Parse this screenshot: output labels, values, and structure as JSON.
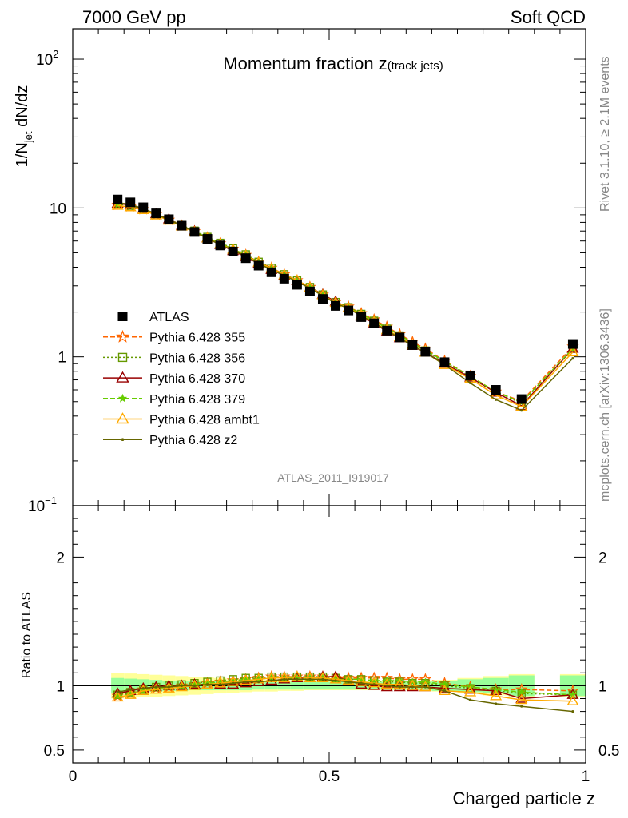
{
  "header": {
    "left": "7000 GeV pp",
    "right": "Soft QCD"
  },
  "side_labels": {
    "rivet": "Rivet 3.1.10, ≥ 2.1M events",
    "mcplots": "mcplots.cern.ch [arXiv:1306.3436]"
  },
  "analysis_id": "ATLAS_2011_I919017",
  "colors": {
    "atlas": "#000000",
    "p355": "#ff6600",
    "p356": "#669900",
    "p370": "#990000",
    "p379": "#66cc00",
    "pambt1": "#ffaa00",
    "pz2": "#666600",
    "band_inner": "#99ff99",
    "band_outer": "#ffff99"
  },
  "chart_data": [
    {
      "type": "line",
      "title": "Momentum fraction z",
      "title_sub": "(track jets)",
      "ylabel": "1/N",
      "ylabel_sub": "jet",
      "ylabel_tail": " dN/dz",
      "yscale": "log",
      "xlim": [
        0,
        1.0
      ],
      "ylim": [
        0.1,
        160
      ],
      "yticks": [
        {
          "v": 100,
          "base": "10",
          "exp": "2"
        },
        {
          "v": 10,
          "base": "10",
          "exp": ""
        },
        {
          "v": 1,
          "base": "1",
          "exp": ""
        },
        {
          "v": 0.1,
          "base": "10",
          "exp": "−1"
        }
      ],
      "x": [
        0.0875,
        0.1125,
        0.1375,
        0.1625,
        0.1875,
        0.2125,
        0.2375,
        0.2625,
        0.2875,
        0.3125,
        0.3375,
        0.3625,
        0.3875,
        0.4125,
        0.4375,
        0.4625,
        0.4875,
        0.5125,
        0.5375,
        0.5625,
        0.5875,
        0.6125,
        0.6375,
        0.6625,
        0.6875,
        0.725,
        0.775,
        0.825,
        0.875,
        0.975
      ],
      "atlas": [
        11.4,
        10.9,
        10.1,
        9.2,
        8.4,
        7.6,
        6.9,
        6.2,
        5.6,
        5.1,
        4.6,
        4.1,
        3.7,
        3.35,
        3.05,
        2.75,
        2.45,
        2.2,
        2.05,
        1.85,
        1.68,
        1.5,
        1.35,
        1.2,
        1.08,
        0.92,
        0.75,
        0.6,
        0.52,
        1.22
      ],
      "ratio_series": [
        {
          "name": "Pythia 6.428 355",
          "key": "p355",
          "marker": "star-open",
          "dash": "6,3",
          "ratio": [
            0.92,
            0.94,
            0.97,
            0.98,
            0.99,
            1.0,
            1.01,
            1.02,
            1.03,
            1.04,
            1.05,
            1.06,
            1.07,
            1.07,
            1.07,
            1.07,
            1.07,
            1.06,
            1.06,
            1.06,
            1.06,
            1.06,
            1.05,
            1.05,
            1.05,
            1.02,
            0.99,
            0.97,
            0.97,
            0.96
          ]
        },
        {
          "name": "Pythia 6.428 356",
          "key": "p356",
          "marker": "square-open",
          "dash": "2,3",
          "ratio": [
            0.93,
            0.95,
            0.97,
            0.99,
            1.0,
            1.01,
            1.02,
            1.03,
            1.04,
            1.05,
            1.06,
            1.06,
            1.07,
            1.07,
            1.07,
            1.07,
            1.07,
            1.06,
            1.05,
            1.05,
            1.04,
            1.03,
            1.03,
            1.02,
            1.02,
            1.0,
            0.98,
            0.96,
            0.94,
            0.93
          ]
        },
        {
          "name": "Pythia 6.428 370",
          "key": "p370",
          "marker": "triangle-open",
          "dash": "",
          "ratio": [
            0.94,
            0.96,
            0.98,
            0.99,
            1.0,
            1.0,
            1.01,
            1.01,
            1.01,
            1.01,
            1.02,
            1.03,
            1.04,
            1.05,
            1.06,
            1.06,
            1.07,
            1.07,
            1.04,
            1.01,
            1.0,
            0.99,
            0.99,
            0.99,
            0.99,
            0.98,
            0.97,
            0.96,
            0.9,
            0.93
          ]
        },
        {
          "name": "Pythia 6.428 379",
          "key": "p379",
          "marker": "star-filled",
          "dash": "6,3",
          "ratio": [
            0.92,
            0.94,
            0.96,
            0.98,
            0.99,
            1.0,
            1.01,
            1.02,
            1.03,
            1.04,
            1.05,
            1.05,
            1.06,
            1.06,
            1.06,
            1.06,
            1.06,
            1.05,
            1.05,
            1.05,
            1.04,
            1.04,
            1.04,
            1.03,
            1.03,
            1.01,
            0.99,
            0.97,
            0.95,
            0.93
          ]
        },
        {
          "name": "Pythia 6.428 ambt1",
          "key": "pambt1",
          "marker": "triangle-open",
          "dash": "",
          "ratio": [
            0.91,
            0.93,
            0.96,
            0.97,
            0.98,
            0.99,
            1.0,
            1.01,
            1.02,
            1.03,
            1.04,
            1.05,
            1.06,
            1.06,
            1.07,
            1.06,
            1.06,
            1.05,
            1.04,
            1.03,
            1.02,
            1.01,
            1.01,
            1.0,
            0.99,
            0.96,
            0.95,
            0.92,
            0.89,
            0.88
          ]
        },
        {
          "name": "Pythia 6.428 z2",
          "key": "pz2",
          "marker": "dot",
          "dash": "",
          "ratio": [
            0.95,
            0.97,
            0.98,
            0.99,
            0.99,
            1.0,
            1.0,
            1.01,
            1.01,
            1.02,
            1.03,
            1.03,
            1.04,
            1.05,
            1.05,
            1.05,
            1.05,
            1.04,
            1.03,
            1.02,
            1.01,
            1.0,
            0.99,
            0.99,
            0.99,
            0.96,
            0.89,
            0.86,
            0.84,
            0.8
          ]
        }
      ]
    },
    {
      "type": "line",
      "ylabel": "Ratio to ATLAS",
      "xlabel": "Charged particle z",
      "ylim": [
        0.4,
        2.4
      ],
      "yticks": [
        {
          "v": 2,
          "label": "2"
        },
        {
          "v": 1,
          "label": "1"
        },
        {
          "v": 0.5,
          "label": "0.5"
        }
      ],
      "xticks": [
        {
          "v": 0,
          "label": "0"
        },
        {
          "v": 0.5,
          "label": "0.5"
        },
        {
          "v": 1,
          "label": "1"
        }
      ],
      "band_x_edges": [
        0.075,
        0.1,
        0.125,
        0.15,
        0.175,
        0.2,
        0.225,
        0.25,
        0.275,
        0.3,
        0.325,
        0.35,
        0.375,
        0.4,
        0.425,
        0.45,
        0.475,
        0.5,
        0.525,
        0.55,
        0.575,
        0.6,
        0.625,
        0.65,
        0.675,
        0.7,
        0.75,
        0.8,
        0.85,
        0.9,
        0.95,
        1.0
      ],
      "band_inner": [
        0.06,
        0.055,
        0.05,
        0.045,
        0.04,
        0.04,
        0.035,
        0.035,
        0.035,
        0.035,
        0.035,
        0.03,
        0.03,
        0.03,
        0.03,
        0.03,
        0.03,
        0.03,
        0.03,
        0.03,
        0.03,
        0.03,
        0.03,
        0.03,
        0.03,
        0.04,
        0.05,
        0.06,
        0.08,
        0.0,
        0.08
      ],
      "band_outer": [
        0.1,
        0.095,
        0.09,
        0.085,
        0.08,
        0.075,
        0.07,
        0.065,
        0.06,
        0.055,
        0.05,
        0.045,
        0.045,
        0.04,
        0.04,
        0.035,
        0.035,
        0.035,
        0.035,
        0.035,
        0.035,
        0.035,
        0.035,
        0.035,
        0.035,
        0.045,
        0.06,
        0.075,
        0.09,
        0.0,
        0.09
      ]
    }
  ],
  "legend": [
    {
      "label": "ATLAS",
      "key": "atlas",
      "marker": "square-filled",
      "dash": "none"
    },
    {
      "label": "Pythia 6.428 355",
      "key": "p355",
      "marker": "star-open",
      "dash": "6,3"
    },
    {
      "label": "Pythia 6.428 356",
      "key": "p356",
      "marker": "square-open",
      "dash": "2,3"
    },
    {
      "label": "Pythia 6.428 370",
      "key": "p370",
      "marker": "triangle-open",
      "dash": ""
    },
    {
      "label": "Pythia 6.428 379",
      "key": "p379",
      "marker": "star-filled",
      "dash": "6,3"
    },
    {
      "label": "Pythia 6.428 ambt1",
      "key": "pambt1",
      "marker": "triangle-open",
      "dash": ""
    },
    {
      "label": "Pythia 6.428 z2",
      "key": "pz2",
      "marker": "dot",
      "dash": ""
    }
  ]
}
